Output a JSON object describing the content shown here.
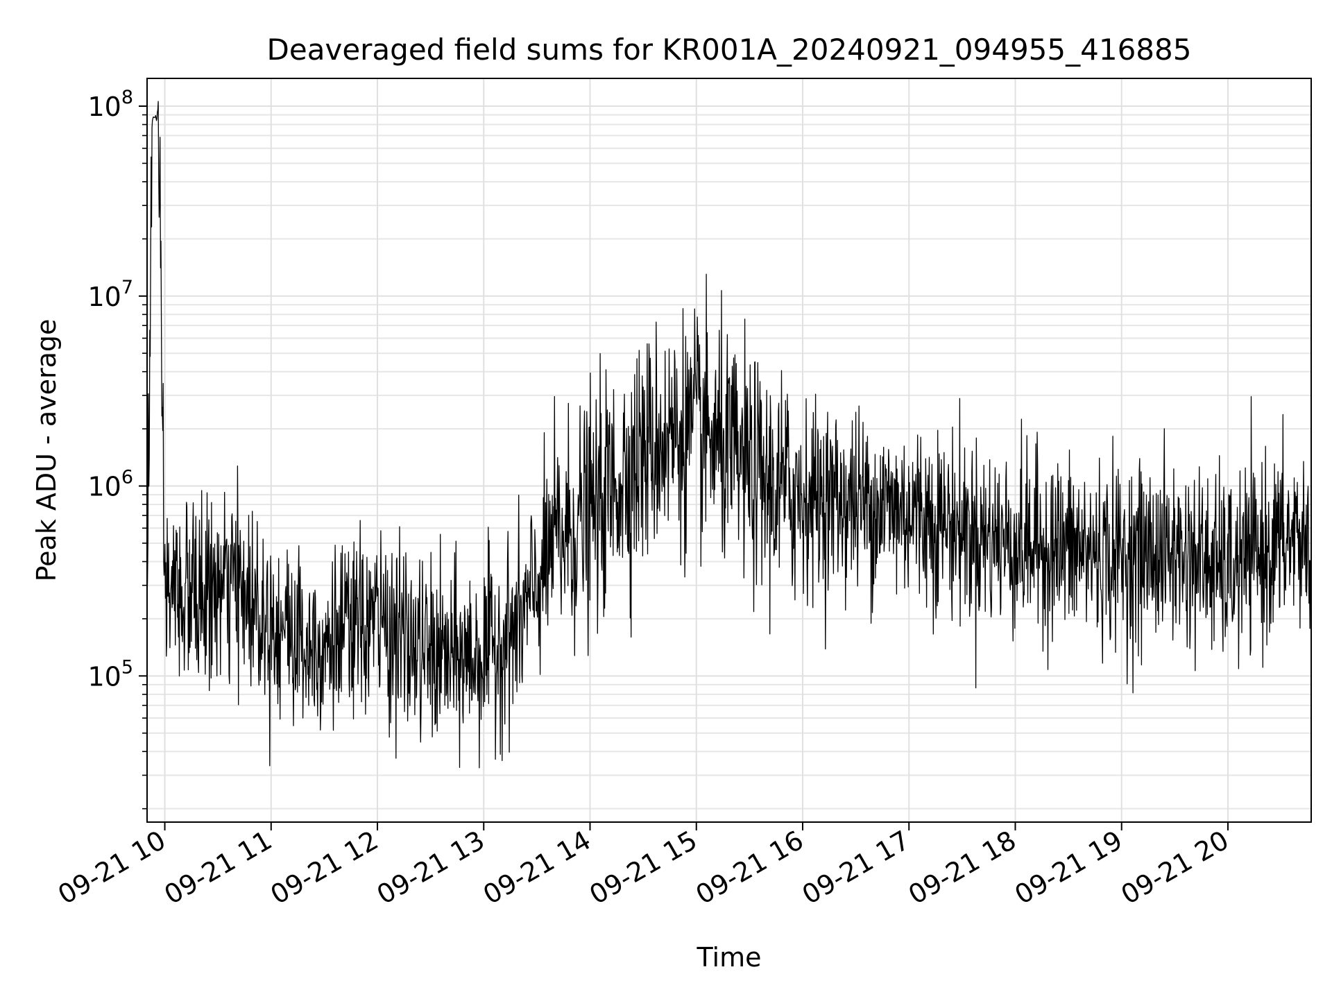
{
  "chart_data": {
    "type": "line",
    "title": "Deaveraged field sums for KR001A_20240921_094955_416885",
    "xlabel": "Time",
    "ylabel": "Peak ADU - average",
    "x_scale": "time",
    "y_scale": "log",
    "xlim": [
      "09-21 09:50",
      "09-21 20:47"
    ],
    "ylim": [
      17000,
      140000000
    ],
    "x_ticks": [
      "09-21 10",
      "09-21 11",
      "09-21 12",
      "09-21 13",
      "09-21 14",
      "09-21 15",
      "09-21 16",
      "09-21 17",
      "09-21 18",
      "09-21 19",
      "09-21 20"
    ],
    "y_ticks": [
      {
        "exponent": 5,
        "value": 100000
      },
      {
        "exponent": 6,
        "value": 1000000
      },
      {
        "exponent": 7,
        "value": 10000000
      },
      {
        "exponent": 8,
        "value": 100000000
      }
    ],
    "grid": "major and minor",
    "series": [
      {
        "color": "#000000",
        "x": [
          "09-21 09:50",
          "09-21 09:53",
          "09-21 09:56",
          "09-21 10:00",
          "09-21 10:20",
          "09-21 10:40",
          "09-21 11:00",
          "09-21 11:20",
          "09-21 11:40",
          "09-21 12:00",
          "09-21 12:20",
          "09-21 12:40",
          "09-21 13:00",
          "09-21 13:20",
          "09-21 13:40",
          "09-21 14:00",
          "09-21 14:20",
          "09-21 14:40",
          "09-21 15:00",
          "09-21 15:20",
          "09-21 15:40",
          "09-21 16:00",
          "09-21 16:20",
          "09-21 16:40",
          "09-21 17:00",
          "09-21 17:20",
          "09-21 17:40",
          "09-21 18:00",
          "09-21 18:20",
          "09-21 18:40",
          "09-21 19:00",
          "09-21 19:20",
          "09-21 19:40",
          "09-21 20:00",
          "09-21 20:20",
          "09-21 20:40",
          "09-21 20:47"
        ],
        "y": [
          300000,
          85000000,
          90000000,
          280000,
          260000,
          300000,
          200000,
          150000,
          160000,
          200000,
          140000,
          120000,
          130000,
          180000,
          500000,
          700000,
          1200000,
          1800000,
          2000000,
          1400000,
          1000000,
          900000,
          850000,
          800000,
          750000,
          650000,
          550000,
          500000,
          480000,
          450000,
          420000,
          450000,
          420000,
          350000,
          450000,
          550000,
          450000
        ]
      }
    ]
  }
}
